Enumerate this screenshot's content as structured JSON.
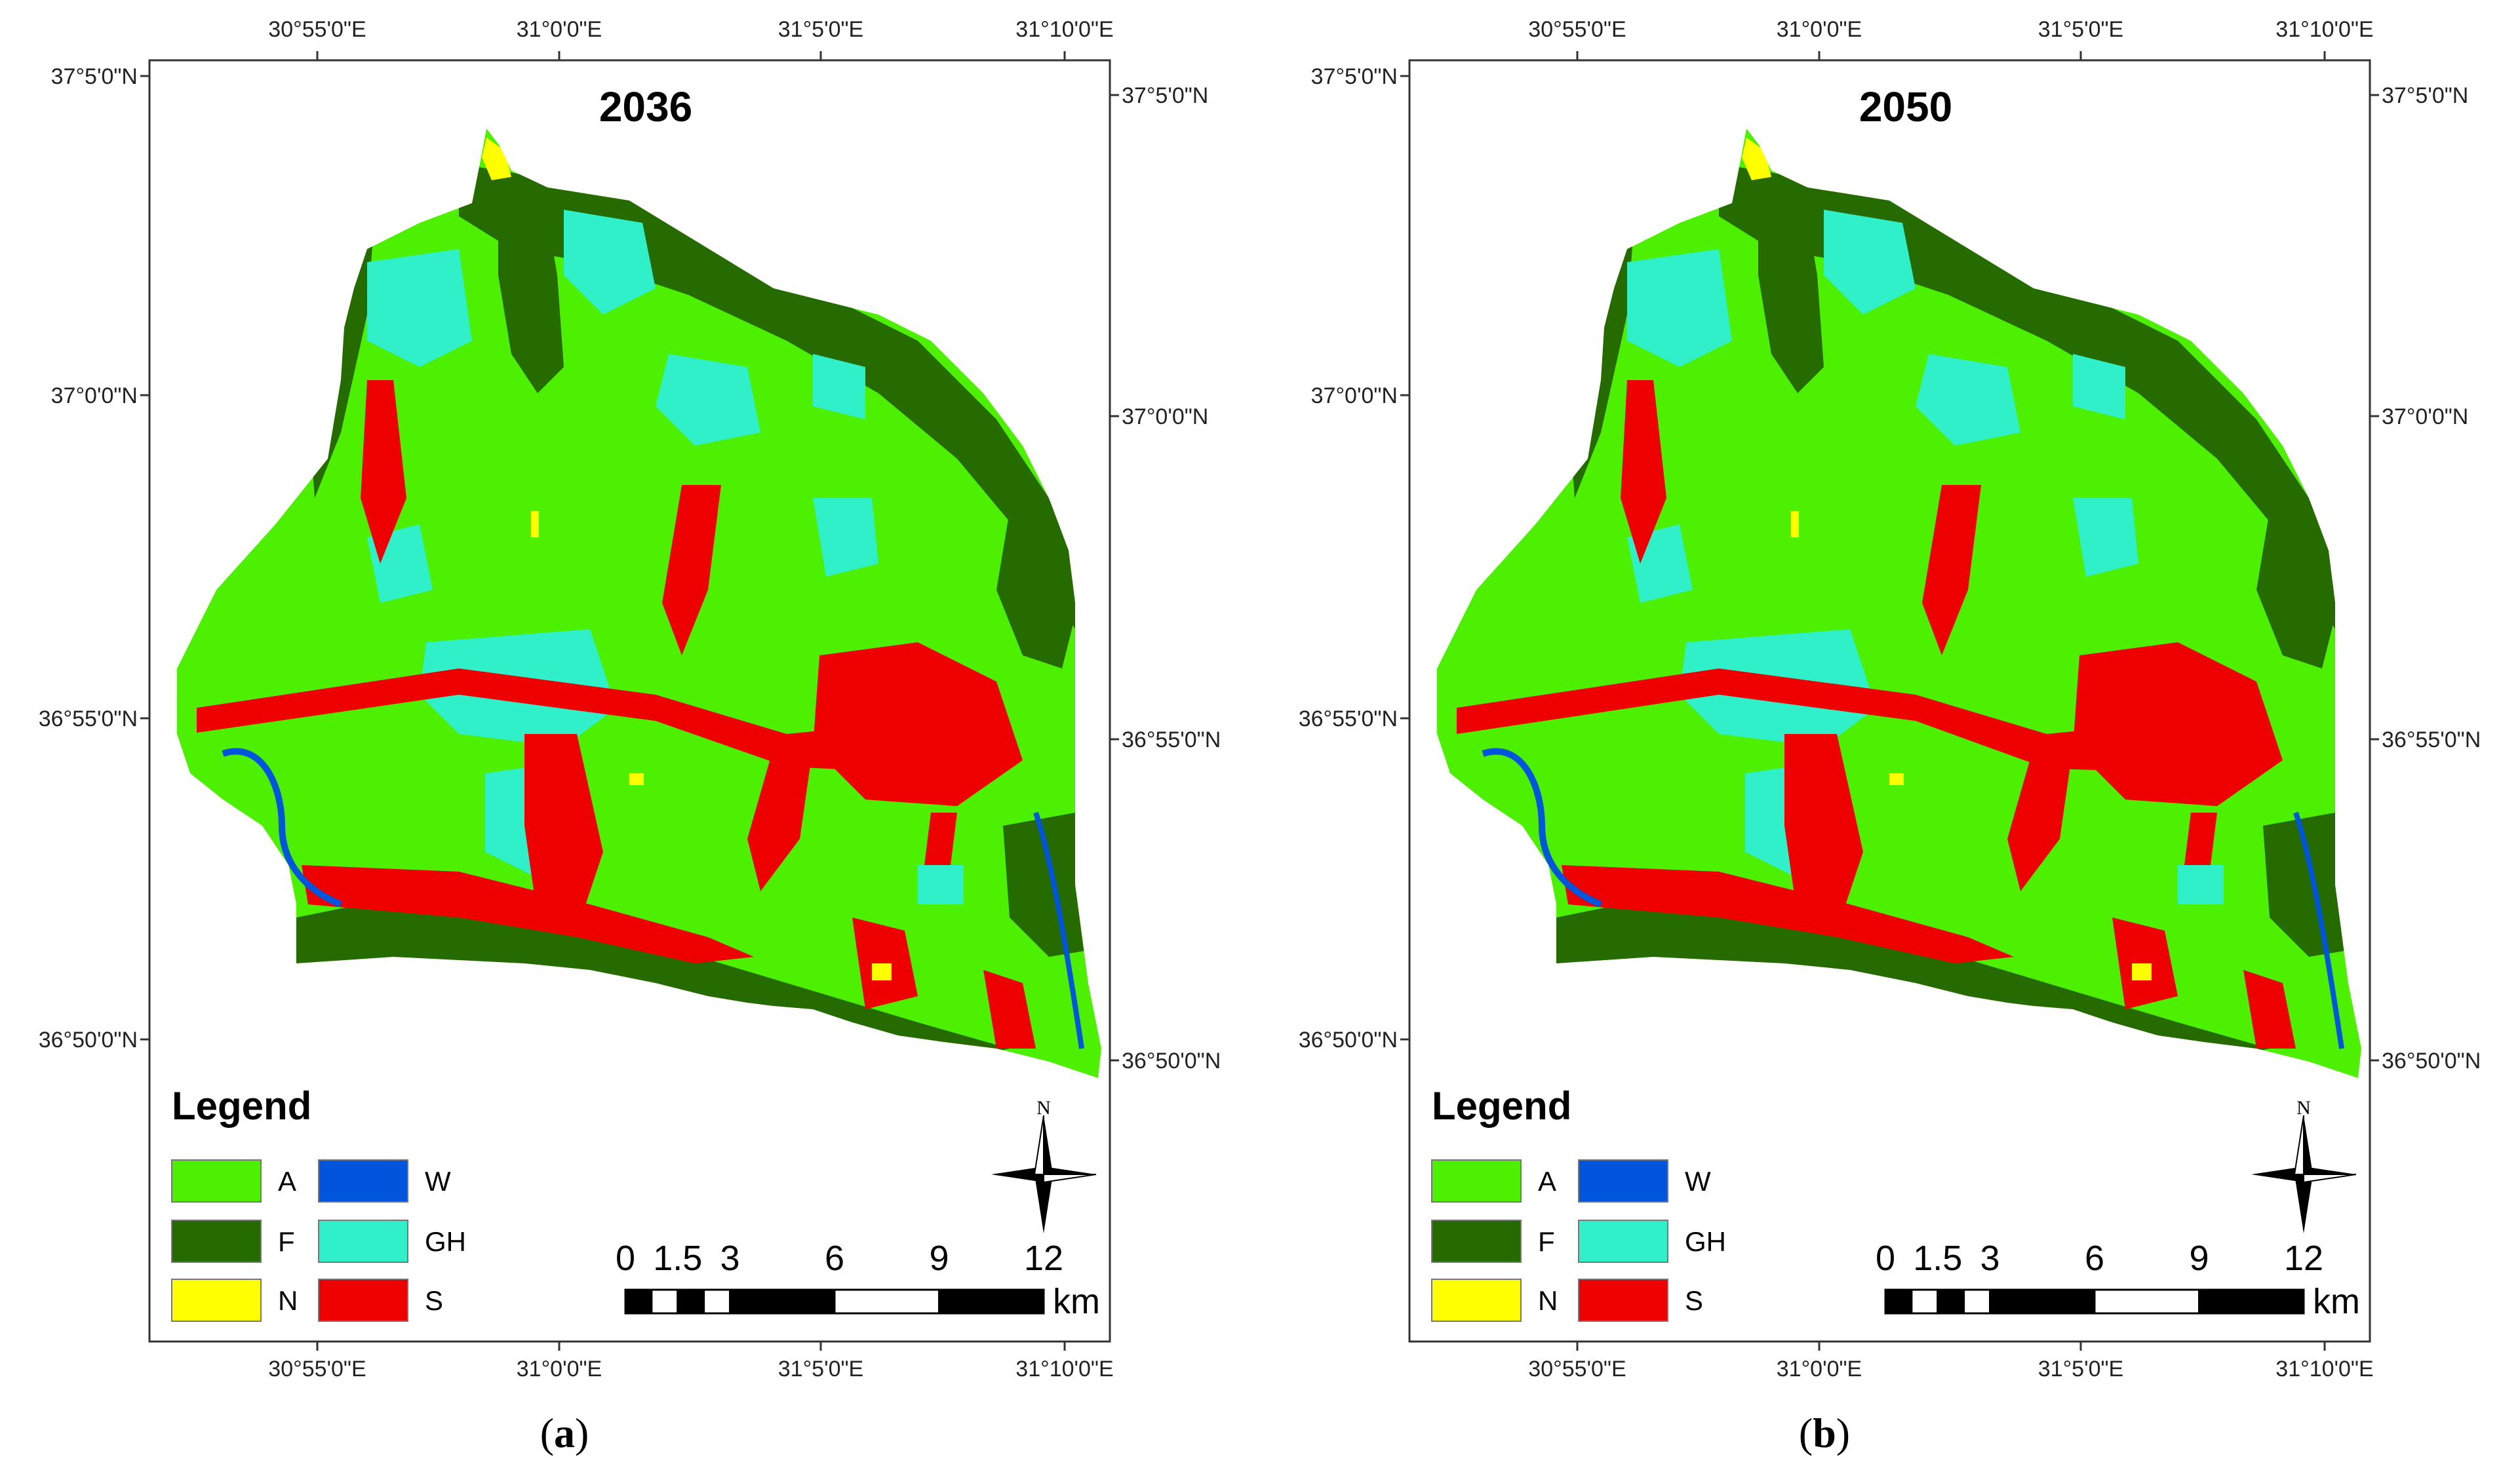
{
  "panels": [
    {
      "year": "2036",
      "caption_letter": "a",
      "top_ticks": [
        "30°55'0\"E",
        "31°0'0\"E",
        "31°5'0\"E",
        "31°10'0\"E"
      ],
      "bottom_ticks": [
        "30°55'0\"E",
        "31°0'0\"E",
        "31°5'0\"E",
        "31°10'0\"E"
      ],
      "left_ticks": [
        "37°5'0\"N",
        "37°0'0\"N",
        "36°55'0\"N",
        "36°50'0\"N"
      ],
      "right_ticks": [
        "37°5'0\"N",
        "37°0'0\"N",
        "36°55'0\"N",
        "36°50'0\"N"
      ]
    },
    {
      "year": "2050",
      "caption_letter": "b",
      "top_ticks": [
        "30°55'0\"E",
        "31°0'0\"E",
        "31°5'0\"E",
        "31°10'0\"E"
      ],
      "bottom_ticks": [
        "30°55'0\"E",
        "31°0'0\"E",
        "31°5'0\"E",
        "31°10'0\"E"
      ],
      "left_ticks": [
        "37°5'0\"N",
        "37°0'0\"N",
        "36°55'0\"N",
        "36°50'0\"N"
      ],
      "right_ticks": [
        "37°5'0\"N",
        "37°0'0\"N",
        "36°55'0\"N",
        "36°50'0\"N"
      ]
    }
  ],
  "legend": {
    "title": "Legend",
    "items": [
      {
        "code": "A",
        "color": "#4cf000"
      },
      {
        "code": "W",
        "color": "#0055dd"
      },
      {
        "code": "F",
        "color": "#256b00"
      },
      {
        "code": "GH",
        "color": "#2ff0c8"
      },
      {
        "code": "N",
        "color": "#ffff00"
      },
      {
        "code": "S",
        "color": "#ee0000"
      }
    ]
  },
  "scale_bar": {
    "labels": [
      "0",
      "1.5",
      "3",
      "6",
      "9",
      "12"
    ],
    "unit": "km"
  },
  "north_arrow": {
    "label": "N",
    "icon": "compass-rose-icon"
  }
}
